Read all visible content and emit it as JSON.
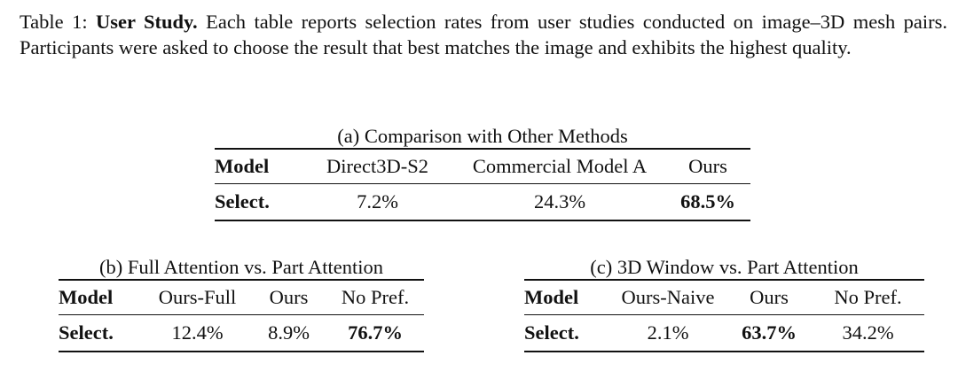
{
  "caption": {
    "prefix": "Table 1: ",
    "title": "User Study.",
    "text": " Each table reports selection rates from user studies conducted on image–3D mesh pairs. Participants were asked to choose the result that best matches the image and exhibits the highest quality."
  },
  "table_a": {
    "caption": "(a) Comparison with Other Methods",
    "headers": [
      "Model",
      "Direct3D-S2",
      "Commercial Model A",
      "Ours"
    ],
    "row_label": "Select.",
    "values": [
      "7.2%",
      "24.3%",
      "68.5%"
    ]
  },
  "table_b": {
    "caption": "(b) Full Attention vs. Part Attention",
    "headers": [
      "Model",
      "Ours-Full",
      "Ours",
      "No Pref."
    ],
    "row_label": "Select.",
    "values": [
      "12.4%",
      "8.9%",
      "76.7%"
    ]
  },
  "table_c": {
    "caption": "(c) 3D Window vs. Part Attention",
    "headers": [
      "Model",
      "Ours-Naive",
      "Ours",
      "No Pref."
    ],
    "row_label": "Select.",
    "values": [
      "2.1%",
      "63.7%",
      "34.2%"
    ]
  }
}
